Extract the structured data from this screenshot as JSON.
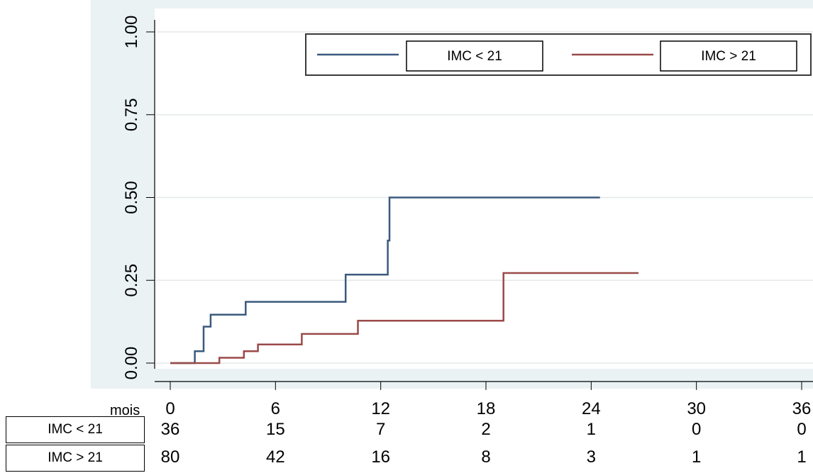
{
  "chart_data": {
    "type": "line",
    "step": true,
    "xlim": [
      0,
      36
    ],
    "ylim": [
      0,
      1
    ],
    "x_ticks": [
      "0",
      "6",
      "12",
      "18",
      "24",
      "30",
      "36"
    ],
    "y_ticks": [
      "0.00",
      "0.25",
      "0.50",
      "0.75",
      "1.00"
    ],
    "x_unit_label": "mois",
    "grid": true,
    "legend_position": "top-right",
    "series": [
      {
        "name": "IMC < 21",
        "color": "#3b5a7e",
        "x": [
          0,
          1.4,
          1.4,
          1.9,
          1.9,
          2.3,
          2.3,
          4.3,
          4.3,
          10.0,
          10.0,
          12.4,
          12.4,
          12.5,
          12.5,
          24.5
        ],
        "y": [
          0,
          0,
          0.036,
          0.036,
          0.11,
          0.11,
          0.146,
          0.146,
          0.185,
          0.185,
          0.267,
          0.267,
          0.37,
          0.37,
          0.5,
          0.5
        ]
      },
      {
        "name": "IMC > 21",
        "color": "#9a4a48",
        "x": [
          0,
          2.8,
          2.8,
          4.2,
          4.2,
          5.0,
          5.0,
          7.5,
          7.5,
          10.7,
          10.7,
          19.0,
          19.0,
          26.7
        ],
        "y": [
          0,
          0,
          0.016,
          0.016,
          0.036,
          0.036,
          0.056,
          0.056,
          0.088,
          0.088,
          0.128,
          0.128,
          0.272,
          0.272
        ]
      }
    ],
    "risk_table": [
      {
        "label": "IMC < 21",
        "counts": [
          "36",
          "15",
          "7",
          "2",
          "1",
          "0",
          "0"
        ]
      },
      {
        "label": "IMC > 21",
        "counts": [
          "80",
          "42",
          "16",
          "8",
          "3",
          "1",
          "1"
        ]
      }
    ]
  }
}
